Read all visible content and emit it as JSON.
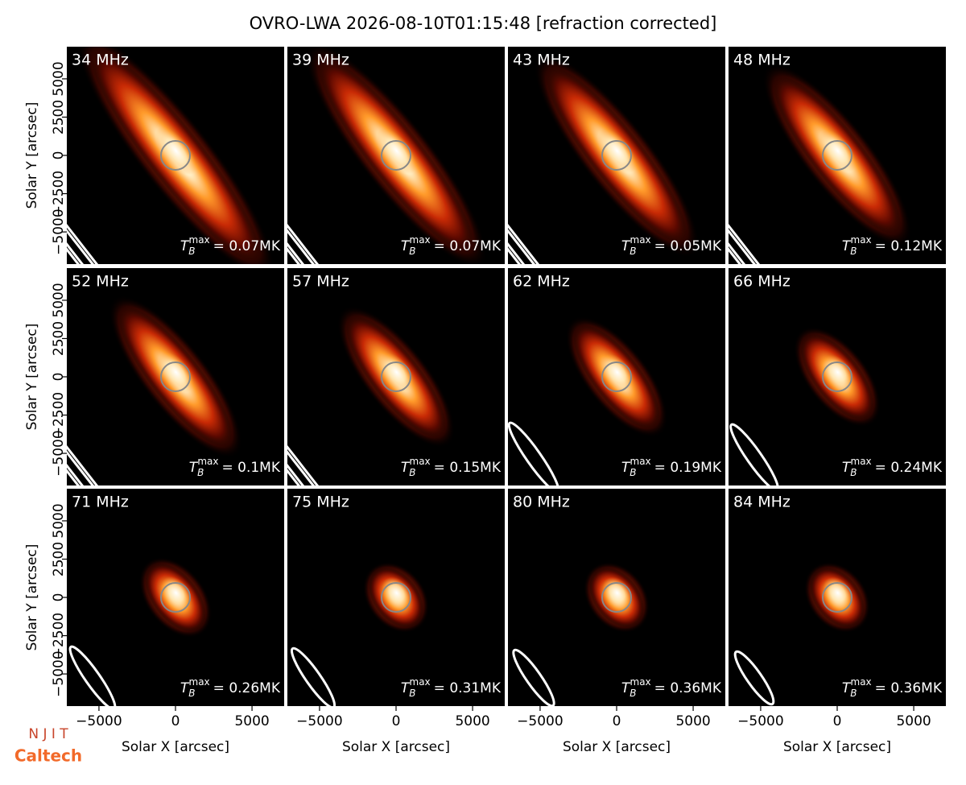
{
  "chart_data": {
    "type": "image-grid",
    "title": "OVRO-LWA 2026-08-10T01:15:48 [refraction corrected]",
    "xlabel": "Solar X [arcsec]",
    "ylabel": "Solar Y [arcsec]",
    "xlim": [
      -7100,
      7100
    ],
    "ylim": [
      -7100,
      7100
    ],
    "xticks": [
      {
        "value": -5000,
        "label": "−5000"
      },
      0,
      5000
    ],
    "yticks": [
      {
        "value": -5000,
        "label": "−5000"
      },
      {
        "value": -2500,
        "label": "−2500"
      },
      0,
      2500,
      5000
    ],
    "tb_symbol": "T",
    "tb_subscript": "B",
    "tb_superscript": "max",
    "panels": [
      {
        "title": "34 MHz",
        "tb_label": "= 0.07MK"
      },
      {
        "title": "39 MHz",
        "tb_label": "= 0.07MK"
      },
      {
        "title": "43 MHz",
        "tb_label": "= 0.05MK"
      },
      {
        "title": "48 MHz",
        "tb_label": "= 0.12MK"
      },
      {
        "title": "52 MHz",
        "tb_label": "= 0.1MK"
      },
      {
        "title": "57 MHz",
        "tb_label": "= 0.15MK"
      },
      {
        "title": "62 MHz",
        "tb_label": "= 0.19MK"
      },
      {
        "title": "66 MHz",
        "tb_label": "= 0.24MK"
      },
      {
        "title": "71 MHz",
        "tb_label": "= 0.26MK"
      },
      {
        "title": "75 MHz",
        "tb_label": "= 0.31MK"
      },
      {
        "title": "80 MHz",
        "tb_label": "= 0.36MK"
      },
      {
        "title": "84 MHz",
        "tb_label": "= 0.36MK"
      }
    ],
    "logos": [
      "N J I T",
      "Caltech"
    ]
  }
}
